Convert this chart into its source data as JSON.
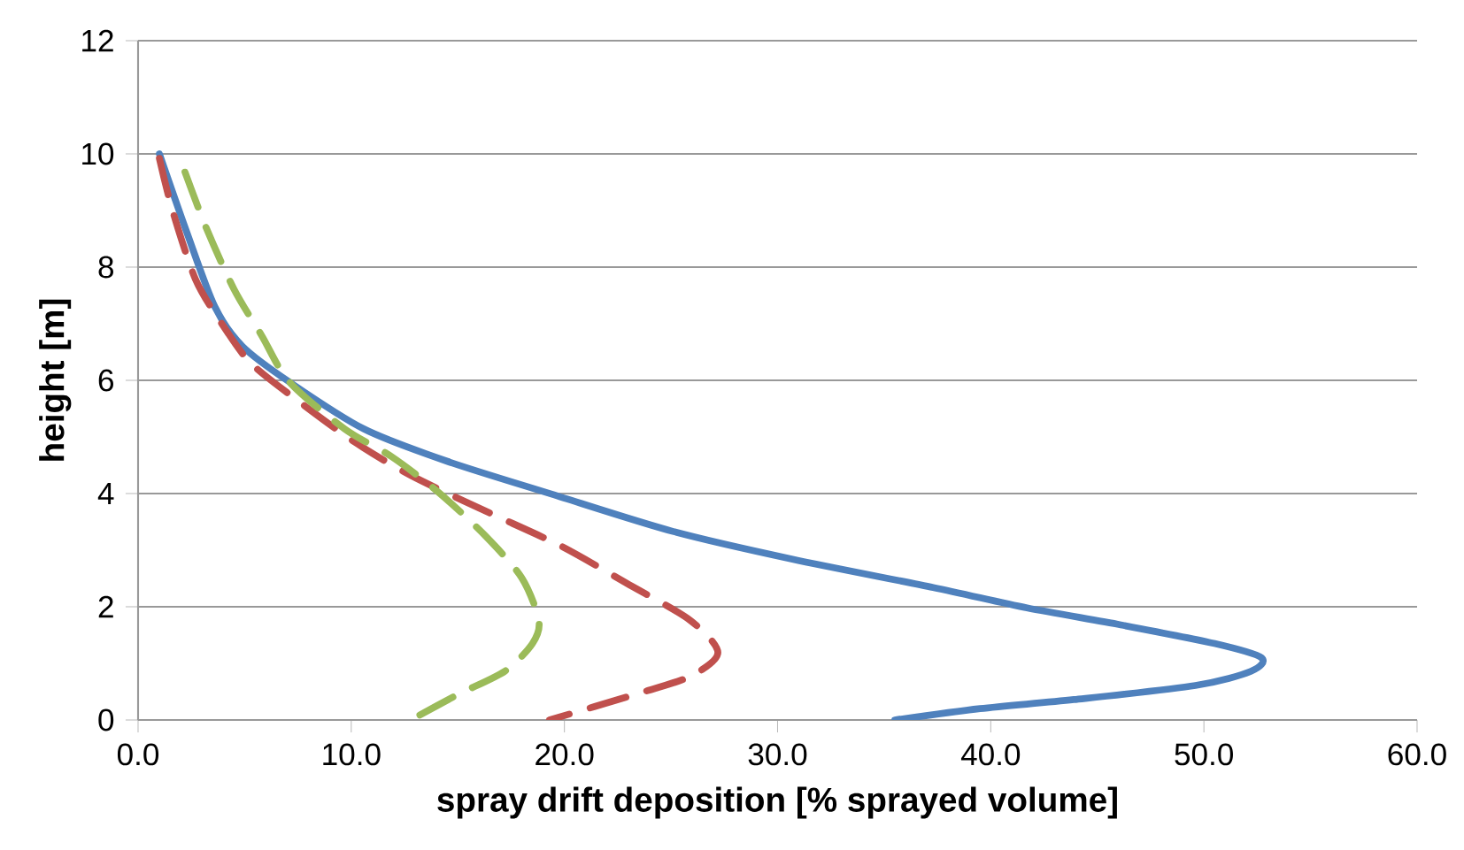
{
  "chart_data": {
    "type": "line",
    "xlabel": "spray drift deposition [% sprayed volume]",
    "ylabel": "height [m]",
    "xlim": [
      0,
      60
    ],
    "ylim": [
      0,
      12
    ],
    "xticks": [
      {
        "value": 0,
        "label": "0.0"
      },
      {
        "value": 10,
        "label": "10.0"
      },
      {
        "value": 20,
        "label": "20.0"
      },
      {
        "value": 30,
        "label": "30.0"
      },
      {
        "value": 40,
        "label": "40.0"
      },
      {
        "value": 50,
        "label": "50.0"
      },
      {
        "value": 60,
        "label": "60.0"
      }
    ],
    "yticks": [
      0,
      2,
      4,
      6,
      8,
      10,
      12
    ],
    "grid": "y",
    "marker": "none",
    "series": [
      {
        "color": "#4f81bd",
        "line_style": "solid",
        "x": [
          1.0,
          2.3,
          3.6,
          4.9,
          7.1,
          10.6,
          14.5,
          19.4,
          25.1,
          30.7,
          37.3,
          41.7,
          46.1,
          50.5,
          52.7,
          52.2,
          49.6,
          43.9,
          39.5,
          35.5
        ],
        "values": [
          10.0,
          8.6,
          7.3,
          6.6,
          5.97,
          5.14,
          4.57,
          3.99,
          3.33,
          2.84,
          2.34,
          1.98,
          1.68,
          1.35,
          1.1,
          0.86,
          0.61,
          0.36,
          0.2,
          0
        ]
      },
      {
        "color": "#c0504d",
        "line_style": "dashed",
        "x": [
          1.0,
          1.6,
          2.7,
          4.0,
          5.3,
          7.5,
          10.2,
          12.8,
          16.3,
          19.8,
          22.9,
          25.9,
          27.2,
          25.9,
          23.3,
          19.3
        ],
        "values": [
          9.92,
          9.02,
          7.78,
          6.96,
          6.3,
          5.64,
          4.9,
          4.32,
          3.69,
          3.08,
          2.42,
          1.76,
          1.19,
          0.77,
          0.45,
          0
        ]
      },
      {
        "color": "#9bbb59",
        "line_style": "dashed",
        "x": [
          2.2,
          3.2,
          4.5,
          5.8,
          7.1,
          9.7,
          11.9,
          14.1,
          16.3,
          18.0,
          18.8,
          18.5,
          17.2,
          15.0,
          12.8
        ],
        "values": [
          9.68,
          8.69,
          7.61,
          6.79,
          5.97,
          5.14,
          4.65,
          4.02,
          3.25,
          2.51,
          1.76,
          1.35,
          0.86,
          0.45,
          0
        ]
      }
    ]
  }
}
